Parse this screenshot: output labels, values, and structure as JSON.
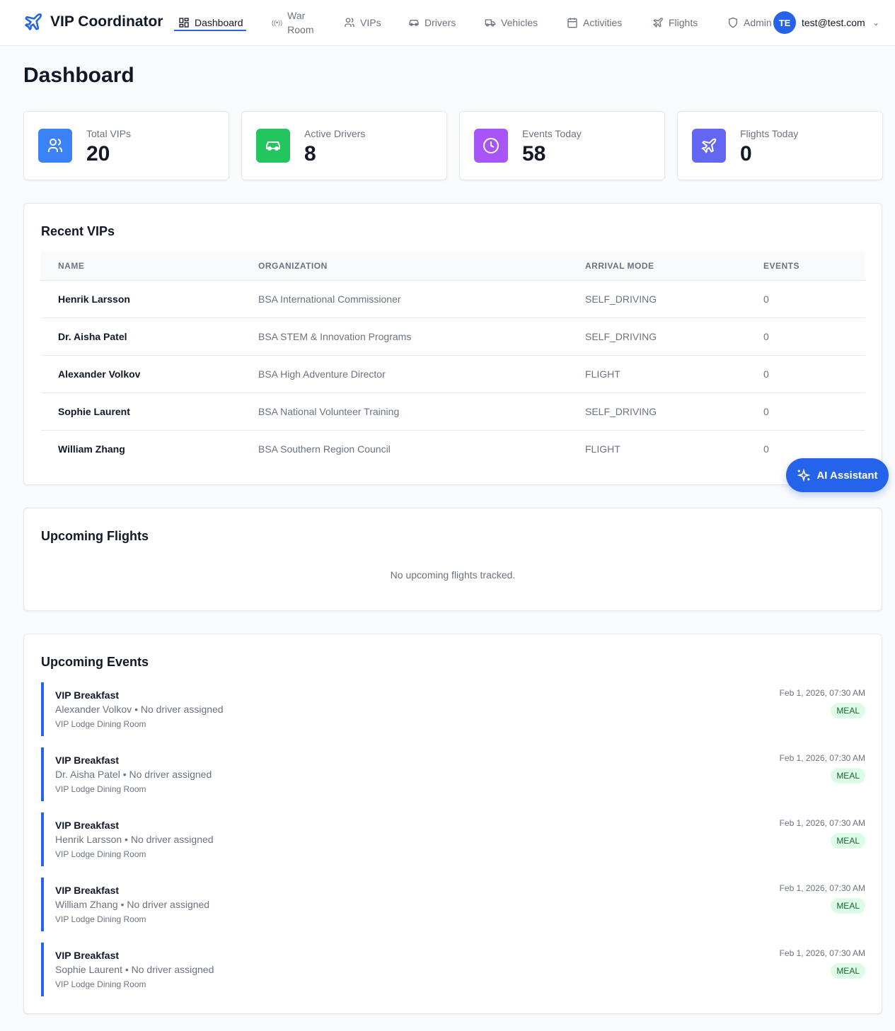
{
  "header": {
    "app_title": "VIP Coordinator",
    "nav": [
      {
        "label": "Dashboard",
        "icon": "grid-icon"
      },
      {
        "label": "War Room",
        "icon": "radio-icon"
      },
      {
        "label": "VIPs",
        "icon": "users-icon"
      },
      {
        "label": "Drivers",
        "icon": "car-icon"
      },
      {
        "label": "Vehicles",
        "icon": "truck-icon"
      },
      {
        "label": "Activities",
        "icon": "calendar-icon"
      },
      {
        "label": "Flights",
        "icon": "plane-icon"
      },
      {
        "label": "Admin",
        "icon": "shield-icon"
      }
    ],
    "avatar_initials": "TE",
    "user_email": "test@test.com"
  },
  "page_title": "Dashboard",
  "stats": [
    {
      "label": "Total VIPs",
      "value": "20",
      "color": "#3b82f6"
    },
    {
      "label": "Active Drivers",
      "value": "8",
      "color": "#22c55e"
    },
    {
      "label": "Events Today",
      "value": "58",
      "color": "#a855f7"
    },
    {
      "label": "Flights Today",
      "value": "0",
      "color": "#6366f1"
    }
  ],
  "recent_vips": {
    "title": "Recent VIPs",
    "columns": [
      "NAME",
      "ORGANIZATION",
      "ARRIVAL MODE",
      "EVENTS"
    ],
    "rows": [
      [
        "Henrik Larsson",
        "BSA International Commissioner",
        "SELF_DRIVING",
        "0"
      ],
      [
        "Dr. Aisha Patel",
        "BSA STEM & Innovation Programs",
        "SELF_DRIVING",
        "0"
      ],
      [
        "Alexander Volkov",
        "BSA High Adventure Director",
        "FLIGHT",
        "0"
      ],
      [
        "Sophie Laurent",
        "BSA National Volunteer Training",
        "SELF_DRIVING",
        "0"
      ],
      [
        "William Zhang",
        "BSA Southern Region Council",
        "FLIGHT",
        "0"
      ]
    ]
  },
  "upcoming_flights": {
    "title": "Upcoming Flights",
    "empty": "No upcoming flights tracked."
  },
  "upcoming_events": {
    "title": "Upcoming Events",
    "items": [
      {
        "title": "VIP Breakfast",
        "subtitle": "Alexander Volkov • No driver assigned",
        "location": "VIP Lodge Dining Room",
        "date": "Feb 1, 2026, 07:30 AM",
        "badge": "MEAL"
      },
      {
        "title": "VIP Breakfast",
        "subtitle": "Dr. Aisha Patel • No driver assigned",
        "location": "VIP Lodge Dining Room",
        "date": "Feb 1, 2026, 07:30 AM",
        "badge": "MEAL"
      },
      {
        "title": "VIP Breakfast",
        "subtitle": "Henrik Larsson • No driver assigned",
        "location": "VIP Lodge Dining Room",
        "date": "Feb 1, 2026, 07:30 AM",
        "badge": "MEAL"
      },
      {
        "title": "VIP Breakfast",
        "subtitle": "William Zhang • No driver assigned",
        "location": "VIP Lodge Dining Room",
        "date": "Feb 1, 2026, 07:30 AM",
        "badge": "MEAL"
      },
      {
        "title": "VIP Breakfast",
        "subtitle": "Sophie Laurent • No driver assigned",
        "location": "VIP Lodge Dining Room",
        "date": "Feb 1, 2026, 07:30 AM",
        "badge": "MEAL"
      }
    ]
  },
  "ai_assistant": {
    "label": "AI Assistant"
  }
}
